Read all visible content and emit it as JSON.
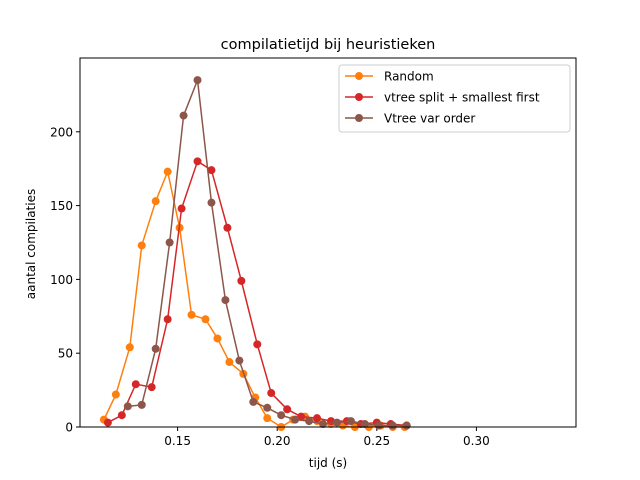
{
  "chart_data": {
    "type": "line",
    "title": "compilatietijd bij heuristieken",
    "xlabel": "tijd (s)",
    "ylabel": "aantal compilaties",
    "xlim": [
      0.101,
      0.35
    ],
    "ylim": [
      0,
      250
    ],
    "xticks": [
      0.15,
      0.2,
      0.25,
      0.3
    ],
    "xtick_labels": [
      "0.15",
      "0.20",
      "0.25",
      "0.30"
    ],
    "yticks": [
      0,
      50,
      100,
      150,
      200
    ],
    "ytick_labels": [
      "0",
      "50",
      "100",
      "150",
      "200"
    ],
    "grid": false,
    "legend": "top-right",
    "series": [
      {
        "name": "Random",
        "color": "#ff7f0e",
        "points": [
          [
            0.113,
            5
          ],
          [
            0.119,
            22
          ],
          [
            0.126,
            54
          ],
          [
            0.132,
            123
          ],
          [
            0.139,
            153
          ],
          [
            0.145,
            173
          ],
          [
            0.151,
            135
          ],
          [
            0.157,
            76
          ],
          [
            0.164,
            73
          ],
          [
            0.17,
            60
          ],
          [
            0.176,
            44
          ],
          [
            0.183,
            36
          ],
          [
            0.189,
            20
          ],
          [
            0.195,
            6
          ],
          [
            0.202,
            0
          ],
          [
            0.208,
            5
          ],
          [
            0.214,
            7
          ],
          [
            0.22,
            4
          ],
          [
            0.227,
            2
          ],
          [
            0.233,
            1
          ],
          [
            0.239,
            0
          ],
          [
            0.246,
            0
          ],
          [
            0.252,
            1
          ],
          [
            0.258,
            0
          ],
          [
            0.264,
            0
          ]
        ]
      },
      {
        "name": "vtree split + smallest first",
        "color": "#d62728",
        "points": [
          [
            0.115,
            3
          ],
          [
            0.122,
            8
          ],
          [
            0.129,
            29
          ],
          [
            0.137,
            27
          ],
          [
            0.145,
            73
          ],
          [
            0.152,
            148
          ],
          [
            0.16,
            180
          ],
          [
            0.167,
            174
          ],
          [
            0.175,
            135
          ],
          [
            0.182,
            99
          ],
          [
            0.19,
            56
          ],
          [
            0.197,
            23
          ],
          [
            0.205,
            12
          ],
          [
            0.212,
            7
          ],
          [
            0.22,
            6
          ],
          [
            0.227,
            4
          ],
          [
            0.235,
            4
          ],
          [
            0.242,
            2
          ],
          [
            0.25,
            3
          ],
          [
            0.257,
            2
          ],
          [
            0.265,
            1
          ]
        ]
      },
      {
        "name": "Vtree var order",
        "color": "#8c564b",
        "points": [
          [
            0.125,
            14
          ],
          [
            0.132,
            15
          ],
          [
            0.139,
            53
          ],
          [
            0.146,
            125
          ],
          [
            0.153,
            211
          ],
          [
            0.16,
            235
          ],
          [
            0.167,
            152
          ],
          [
            0.174,
            86
          ],
          [
            0.181,
            45
          ],
          [
            0.188,
            17
          ],
          [
            0.195,
            13
          ],
          [
            0.202,
            8
          ],
          [
            0.209,
            5
          ],
          [
            0.216,
            4
          ],
          [
            0.223,
            2
          ],
          [
            0.23,
            3
          ],
          [
            0.237,
            4
          ],
          [
            0.244,
            2
          ],
          [
            0.251,
            1
          ],
          [
            0.258,
            1
          ],
          [
            0.265,
            1
          ]
        ]
      }
    ]
  }
}
